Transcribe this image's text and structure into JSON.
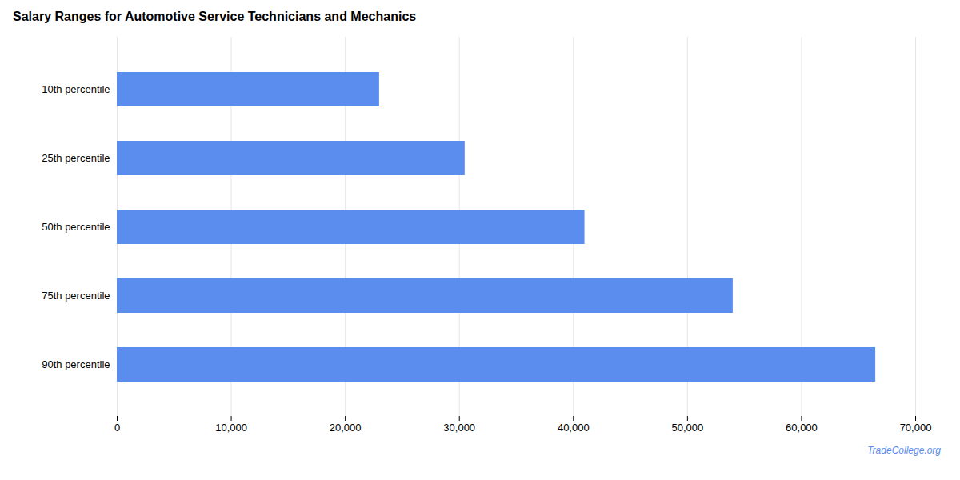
{
  "chart_data": {
    "type": "bar",
    "orientation": "horizontal",
    "title": "Salary Ranges for Automotive Service Technicians and Mechanics",
    "categories": [
      "10th percentile",
      "25th percentile",
      "50th percentile",
      "75th percentile",
      "90th percentile"
    ],
    "values": [
      23000,
      30500,
      41000,
      54000,
      66500
    ],
    "color": "#5b8def",
    "xlim": [
      0,
      70000
    ],
    "xticks": [
      0,
      {
        "value": 10000,
        "label": "10,000"
      },
      {
        "value": 20000,
        "label": "20,000"
      },
      {
        "value": 30000,
        "label": "30,000"
      },
      {
        "value": 40000,
        "label": "40,000"
      },
      {
        "value": 50000,
        "label": "50,000"
      },
      {
        "value": 60000,
        "label": "60,000"
      },
      {
        "value": 70000,
        "label": "70,000"
      }
    ],
    "grid": true,
    "annotations": [
      {
        "text": "TradeCollege.org",
        "color": "#5b8def"
      }
    ]
  }
}
